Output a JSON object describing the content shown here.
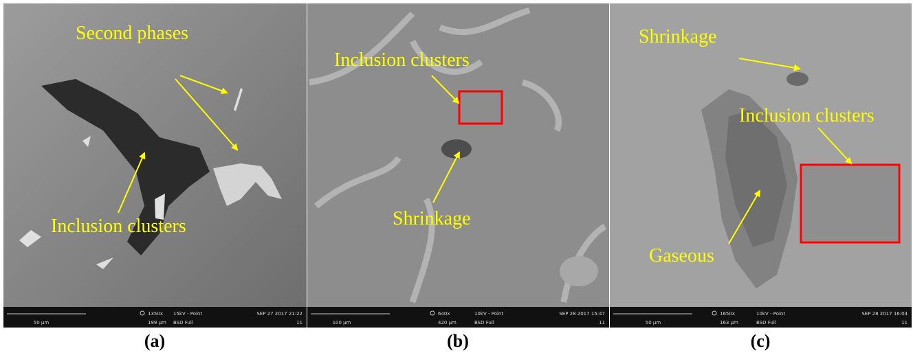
{
  "panels": [
    {
      "label": "(a)",
      "annotations": [
        "Second phases",
        "Inclusion clusters"
      ],
      "info": {
        "scale": "50 µm",
        "magnification": "1350x",
        "field": "199 µm",
        "voltage": "15kV - Point",
        "detector": "BSD Full",
        "date": "SEP 27 2017 21:22",
        "id": "11"
      }
    },
    {
      "label": "(b)",
      "annotations": [
        "Inclusion clusters",
        "Shrinkage"
      ],
      "info": {
        "scale": "100 µm",
        "magnification": "640x",
        "field": "420 µm",
        "voltage": "10kV - Point",
        "detector": "BSD Full",
        "date": "SEP 28 2017 15:47",
        "id": "11"
      }
    },
    {
      "label": "(c)",
      "annotations": [
        "Shrinkage",
        "Inclusion clusters",
        "Gaseous"
      ],
      "info": {
        "scale": "50 µm",
        "magnification": "1650x",
        "field": "163 µm",
        "voltage": "10kV - Point",
        "detector": "BSD Full",
        "date": "SEP 28 2017 16:04",
        "id": "11"
      }
    }
  ]
}
